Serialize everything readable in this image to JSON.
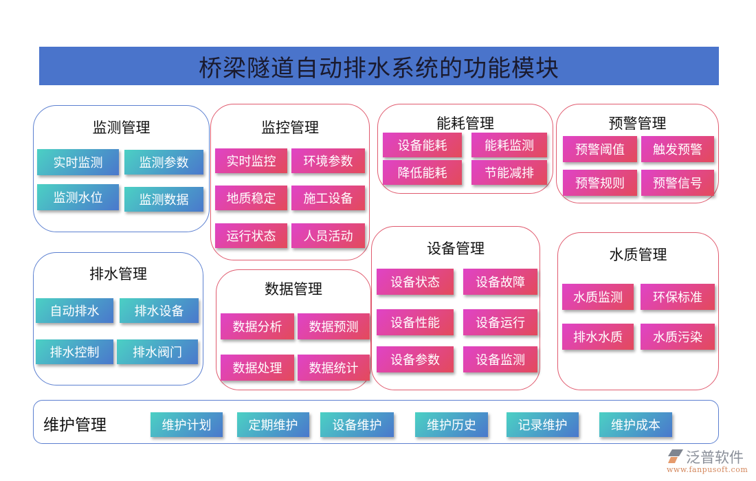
{
  "title": "桥梁隧道自动排水系统的功能模块",
  "colors": {
    "header": "#4a74cb",
    "blue_border": "#5b7fd0",
    "red_border": "#e05a6e",
    "teal_gradient": [
      "#4bd0c4",
      "#4a78cc"
    ],
    "pink_gradient": [
      "#e043c6",
      "#e34a5c"
    ]
  },
  "modules": {
    "monitoring": {
      "title": "监测管理",
      "items": [
        "实时监测",
        "监测参数",
        "监测水位",
        "监测数据"
      ]
    },
    "supervision": {
      "title": "监控管理",
      "items": [
        "实时监控",
        "环境参数",
        "地质稳定",
        "施工设备",
        "运行状态",
        "人员活动"
      ]
    },
    "energy": {
      "title": "能耗管理",
      "items": [
        "设备能耗",
        "能耗监测",
        "降低能耗",
        "节能减排"
      ]
    },
    "warning": {
      "title": "预警管理",
      "items": [
        "预警阈值",
        "触发预警",
        "预警规则",
        "预警信号"
      ]
    },
    "drainage": {
      "title": "排水管理",
      "items": [
        "自动排水",
        "排水设备",
        "排水控制",
        "排水阀门"
      ]
    },
    "data": {
      "title": "数据管理",
      "items": [
        "数据分析",
        "数据预测",
        "数据处理",
        "数据统计"
      ]
    },
    "equipment": {
      "title": "设备管理",
      "items": [
        "设备状态",
        "设备故障",
        "设备性能",
        "设备运行",
        "设备参数",
        "设备监测"
      ]
    },
    "water": {
      "title": "水质管理",
      "items": [
        "水质监测",
        "环保标准",
        "排水水质",
        "水质污染"
      ]
    },
    "maintenance": {
      "title": "维护管理",
      "items": [
        "维护计划",
        "定期维护",
        "设备维护",
        "维护历史",
        "记录维护",
        "维护成本"
      ]
    }
  },
  "logo": {
    "name": "泛普软件",
    "url": "www.fanpusoft.com"
  }
}
